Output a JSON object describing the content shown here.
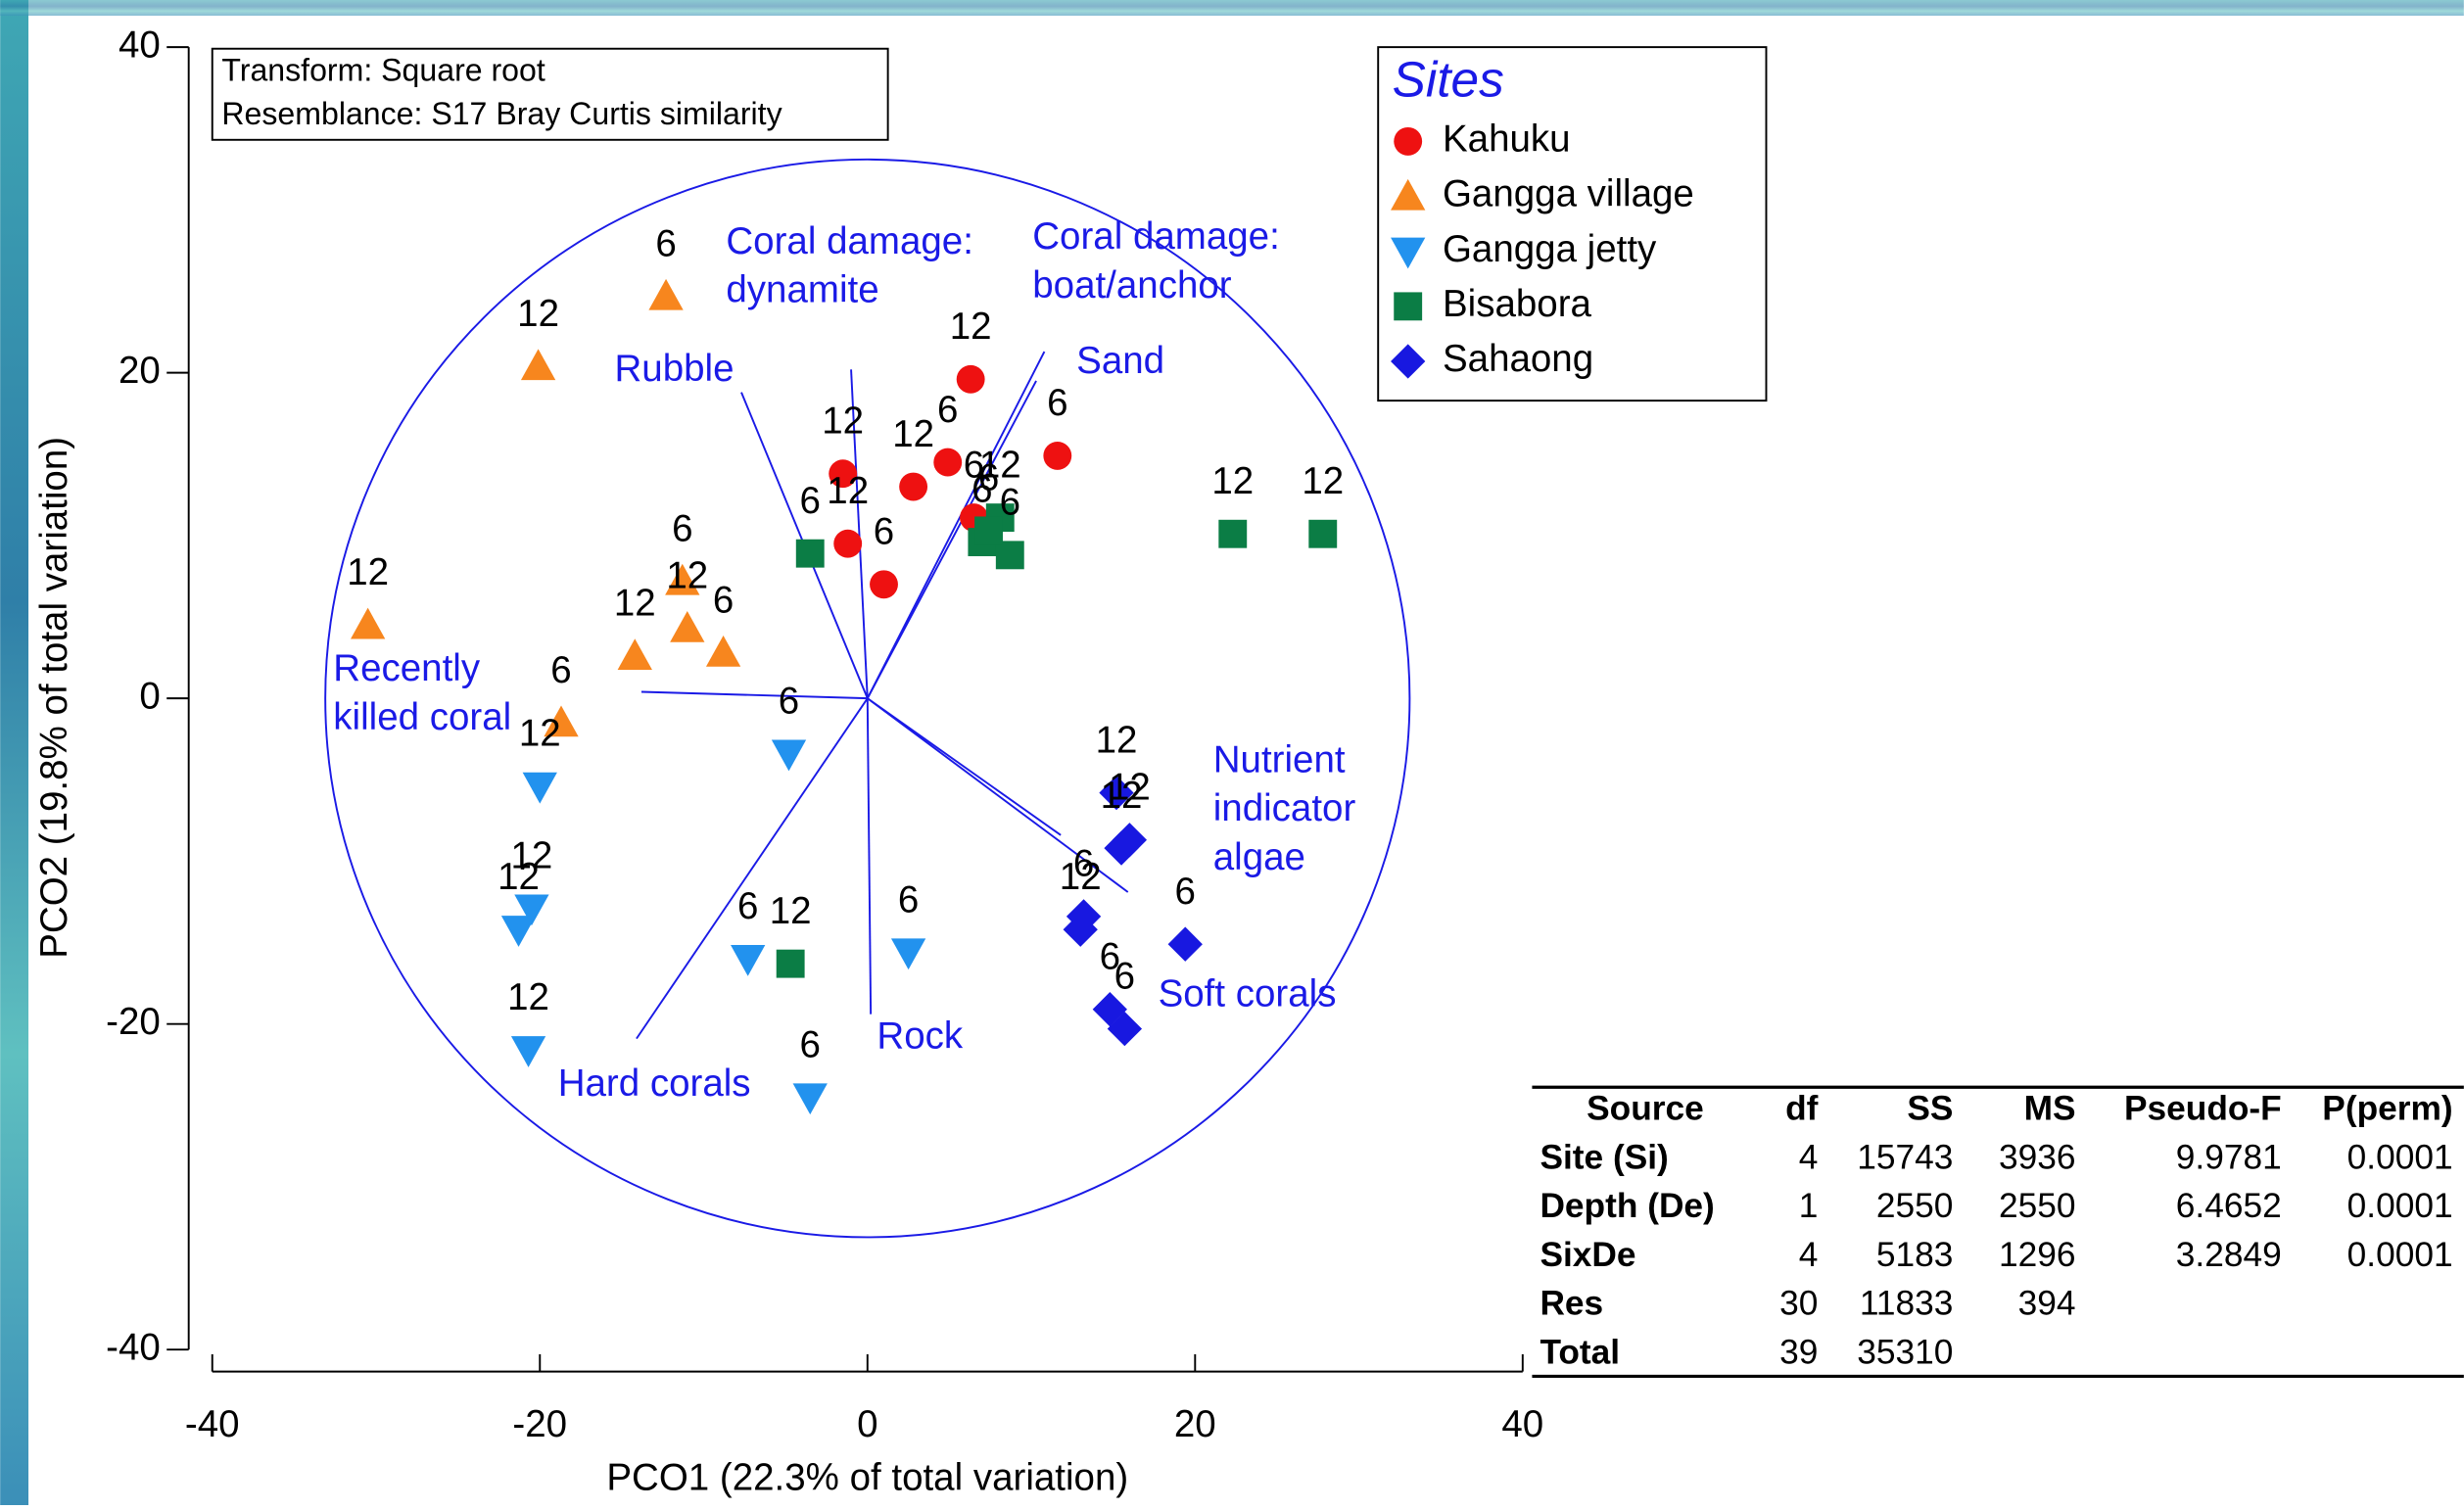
{
  "chart_data": {
    "type": "biplot",
    "xlabel": "PCO1 (22.3% of total variation)",
    "ylabel": "PCO2 (19.8% of total variation)",
    "xlim": [
      -40,
      40
    ],
    "xticks": [
      -40,
      -20,
      0,
      20,
      40
    ],
    "ylim": [
      -40,
      40
    ],
    "yticks": [
      -40,
      -20,
      0,
      20,
      40
    ],
    "annotation": [
      "Transform: Square root",
      "Resemblance: S17 Bray Curtis similarity"
    ],
    "legend_title": "Sites",
    "legend_position": "upper right",
    "circle_radius": 33.1,
    "series": [
      {
        "name": "Kahuku",
        "color": "#ee1111",
        "marker": "circle",
        "x": [
          6.3,
          -1.5,
          2.8,
          4.9,
          11.6,
          -1.2,
          1.0,
          6.5
        ],
        "values": [
          19.6,
          13.8,
          13.0,
          14.5,
          14.9,
          9.5,
          7.0,
          11.1
        ],
        "labels": [
          "12",
          "12",
          "12",
          "6",
          "6",
          "12",
          "6",
          "6"
        ]
      },
      {
        "name": "Gangga village",
        "color": "#f7861e",
        "marker": "triangle-up",
        "x": [
          -12.3,
          -20.1,
          -30.5,
          -11.3,
          -11.0,
          -14.2,
          -8.8,
          -18.7
        ],
        "values": [
          24.7,
          20.4,
          4.5,
          7.2,
          4.3,
          2.6,
          2.8,
          -1.5
        ],
        "labels": [
          "6",
          "12",
          "12",
          "6",
          "12",
          "12",
          "6",
          "6"
        ]
      },
      {
        "name": "Gangga jetty",
        "color": "#2292ee",
        "marker": "triangle-down",
        "x": [
          -4.8,
          -20.0,
          -20.5,
          -21.3,
          -20.7,
          -7.3,
          2.5,
          -3.5
        ],
        "values": [
          -3.4,
          -5.4,
          -12.9,
          -14.2,
          -21.6,
          -16.0,
          -15.6,
          -24.5
        ],
        "labels": [
          "6",
          "12",
          "12",
          "12",
          "12",
          "6",
          "6",
          "6"
        ]
      },
      {
        "name": "Bisabora",
        "color": "#0b7d45",
        "marker": "square",
        "x": [
          -3.5,
          -4.7,
          22.3,
          27.8,
          7.0,
          8.1,
          8.7,
          7.4
        ],
        "values": [
          8.9,
          -16.3,
          10.1,
          10.1,
          9.6,
          11.1,
          8.8,
          10.3
        ],
        "labels": [
          "6",
          "12",
          "12",
          "12",
          "6",
          "12",
          "6",
          "6"
        ]
      },
      {
        "name": "Sahaong",
        "color": "#1818e0",
        "marker": "diamond",
        "x": [
          15.2,
          15.5,
          16.0,
          13.2,
          13.0,
          19.4,
          14.8,
          15.7
        ],
        "values": [
          -5.8,
          -9.2,
          -8.7,
          -13.4,
          -14.2,
          -15.1,
          -19.1,
          -20.3
        ],
        "labels": [
          "12",
          "12",
          "12",
          "6",
          "12",
          "6",
          "6",
          "6"
        ]
      }
    ],
    "vectors": [
      {
        "label": [
          "Rubble"
        ],
        "x": -7.7,
        "y": 18.8
      },
      {
        "label": [
          "Coral damage:",
          "dynamite"
        ],
        "x": -1.0,
        "y": 20.2
      },
      {
        "label": [
          "Coral damage:",
          "boat/anchor"
        ],
        "x": 10.8,
        "y": 21.3
      },
      {
        "label": [
          "Sand"
        ],
        "x": 10.3,
        "y": 19.5
      },
      {
        "label": [
          "Recently",
          "killed coral"
        ],
        "x": -13.8,
        "y": 0.4
      },
      {
        "label": [
          "Nutrient",
          "indicator",
          "algae"
        ],
        "x": 11.8,
        "y": -8.4
      },
      {
        "label": [
          "Soft corals"
        ],
        "x": 15.9,
        "y": -11.9
      },
      {
        "label": [
          "Hard corals"
        ],
        "x": -14.1,
        "y": -20.9
      },
      {
        "label": [
          "Rock"
        ],
        "x": 0.2,
        "y": -19.4
      }
    ]
  },
  "table": {
    "header": [
      "Source",
      "df",
      "SS",
      "MS",
      "Pseudo-F",
      "P(perm)"
    ],
    "rows": [
      [
        "Site (Si)",
        4,
        15743,
        3936,
        9.9781,
        0.0001
      ],
      [
        "Depth (De)",
        1,
        2550,
        2550,
        6.4652,
        0.0001
      ],
      [
        "SixDe",
        4,
        5183,
        1296,
        3.2849,
        0.0001
      ],
      [
        "Res",
        30,
        11833,
        394
      ],
      [
        "Total",
        39,
        35310
      ]
    ]
  }
}
